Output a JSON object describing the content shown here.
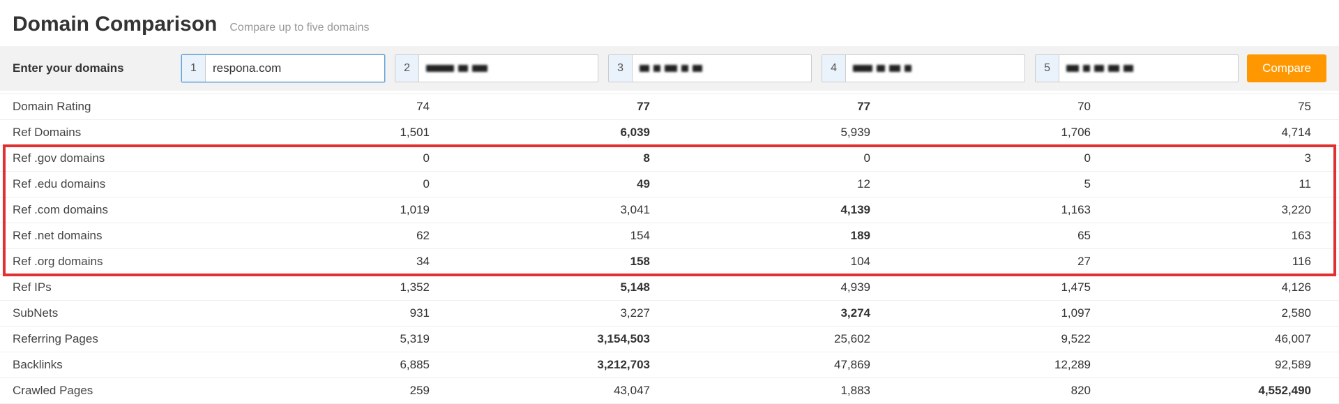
{
  "header": {
    "title": "Domain Comparison",
    "subtitle": "Compare up to five domains"
  },
  "inputBar": {
    "label": "Enter your domains",
    "compareLabel": "Compare",
    "domains": [
      {
        "num": "1",
        "value": "respona.com",
        "blurred": false,
        "active": true
      },
      {
        "num": "2",
        "value": "",
        "blurred": true,
        "active": false
      },
      {
        "num": "3",
        "value": "",
        "blurred": true,
        "active": false
      },
      {
        "num": "4",
        "value": "",
        "blurred": true,
        "active": false
      },
      {
        "num": "5",
        "value": "",
        "blurred": true,
        "active": false
      }
    ]
  },
  "metrics": [
    {
      "label": "Domain Rating",
      "vals": [
        "74",
        "77",
        "77",
        "70",
        "75"
      ],
      "boldIdx": [
        1,
        2
      ]
    },
    {
      "label": "Ref Domains",
      "vals": [
        "1,501",
        "6,039",
        "5,939",
        "1,706",
        "4,714"
      ],
      "boldIdx": [
        1
      ]
    },
    {
      "label": "Ref .gov domains",
      "vals": [
        "0",
        "8",
        "0",
        "0",
        "3"
      ],
      "boldIdx": [
        1
      ],
      "hl": true
    },
    {
      "label": "Ref .edu domains",
      "vals": [
        "0",
        "49",
        "12",
        "5",
        "11"
      ],
      "boldIdx": [
        1
      ],
      "hl": true
    },
    {
      "label": "Ref .com domains",
      "vals": [
        "1,019",
        "3,041",
        "4,139",
        "1,163",
        "3,220"
      ],
      "boldIdx": [
        2
      ],
      "hl": true
    },
    {
      "label": "Ref .net domains",
      "vals": [
        "62",
        "154",
        "189",
        "65",
        "163"
      ],
      "boldIdx": [
        2
      ],
      "hl": true
    },
    {
      "label": "Ref .org domains",
      "vals": [
        "34",
        "158",
        "104",
        "27",
        "116"
      ],
      "boldIdx": [
        1
      ],
      "hl": true
    },
    {
      "label": "Ref IPs",
      "vals": [
        "1,352",
        "5,148",
        "4,939",
        "1,475",
        "4,126"
      ],
      "boldIdx": [
        1
      ]
    },
    {
      "label": "SubNets",
      "vals": [
        "931",
        "3,227",
        "3,274",
        "1,097",
        "2,580"
      ],
      "boldIdx": [
        2
      ]
    },
    {
      "label": "Referring Pages",
      "vals": [
        "5,319",
        "3,154,503",
        "25,602",
        "9,522",
        "46,007"
      ],
      "boldIdx": [
        1
      ]
    },
    {
      "label": "Backlinks",
      "vals": [
        "6,885",
        "3,212,703",
        "47,869",
        "12,289",
        "92,589"
      ],
      "boldIdx": [
        1
      ]
    },
    {
      "label": "Crawled Pages",
      "vals": [
        "259",
        "43,047",
        "1,883",
        "820",
        "4,552,490"
      ],
      "boldIdx": [
        4
      ]
    }
  ],
  "colors": {
    "accent": "#ff9800",
    "highlight": "#e03030",
    "inputFocus": "#5b9dd9"
  }
}
